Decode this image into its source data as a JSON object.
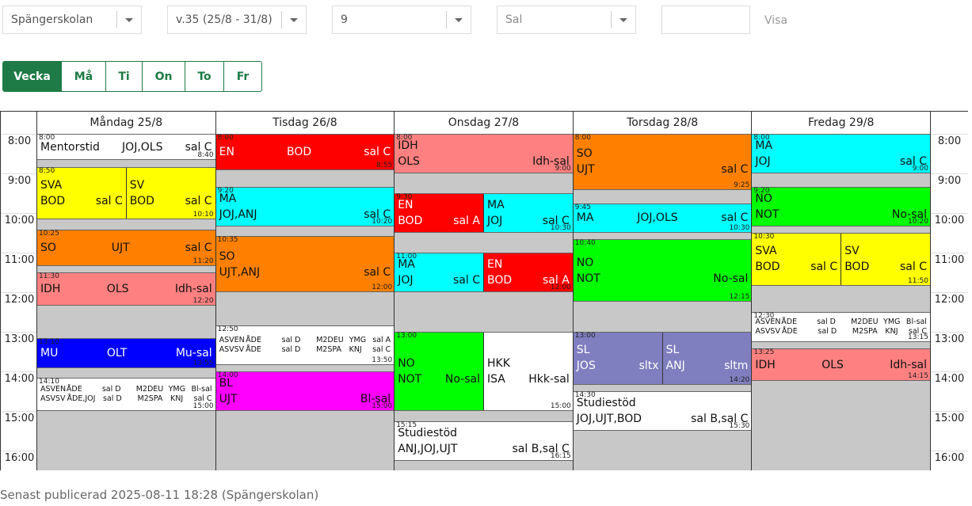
{
  "controls": {
    "school": "Spängerskolan",
    "week": "v.35 (25/8 - 31/8)",
    "class": "9",
    "room": "Sal",
    "show": "Visa"
  },
  "tabs": [
    "Vecka",
    "Må",
    "Ti",
    "On",
    "To",
    "Fr"
  ],
  "hours": [
    "8:00",
    "9:00",
    "10:00",
    "11:00",
    "12:00",
    "13:00",
    "14:00",
    "15:00",
    "16:00"
  ],
  "days": [
    {
      "name": "Måndag 25/8",
      "lessons": [
        {
          "start": "8:00",
          "end": "8:40",
          "color": "#ffffff",
          "rows": [
            [
              "Mentorstid",
              "JOJ,OLS",
              "sal C"
            ]
          ]
        },
        {
          "start": "8:50",
          "end": "10:10",
          "parts": [
            {
              "color": "#ffff00",
              "rows": [
                [
                  "SVA"
                ],
                [
                  "BOD",
                  "sal C"
                ]
              ]
            },
            {
              "color": "#ffff00",
              "rows": [
                [
                  "SV"
                ],
                [
                  "BOD",
                  "sal C"
                ]
              ]
            }
          ]
        },
        {
          "start": "10:25",
          "end": "11:20",
          "color": "#ff8000",
          "rows": [
            [
              "SO",
              "UJT",
              "sal C"
            ]
          ]
        },
        {
          "start": "11:30",
          "end": "12:20",
          "color": "#ff8080",
          "rows": [
            [
              "IDH",
              "OLS",
              "Idh-sal"
            ]
          ]
        },
        {
          "start": "13:10",
          "end": "13:55",
          "color": "#0000ff",
          "text_color": "#ffffff",
          "rows": [
            [
              "MU",
              "OLT",
              "Mu-sal"
            ]
          ]
        },
        {
          "start": "14:10",
          "end": "15:00",
          "color": "#ffffff",
          "rows": [
            [
              "ASVEN",
              "ÅDE",
              "sal D",
              "M2DEU",
              "YMG",
              "Bl-sal"
            ],
            [
              "ASVSV",
              "ÅDE,JOJ",
              "sal D",
              "M2SPA",
              "KNJ",
              "sal C"
            ]
          ]
        }
      ]
    },
    {
      "name": "Tisdag 26/8",
      "lessons": [
        {
          "start": "8:00",
          "end": "8:55",
          "color": "#ff0000",
          "text_color": "#ffffff",
          "rows": [
            [
              "EN",
              "BOD",
              "sal C"
            ]
          ]
        },
        {
          "start": "9:20",
          "end": "10:20",
          "color": "#00ffff",
          "rows": [
            [
              "MA"
            ],
            [
              "JOJ,ANJ",
              "sal C"
            ]
          ]
        },
        {
          "start": "10:35",
          "end": "12:00",
          "color": "#ff8000",
          "rows": [
            [
              "SO"
            ],
            [
              "UJT,ANJ",
              "sal C"
            ]
          ]
        },
        {
          "start": "12:50",
          "end": "13:50",
          "color": "#ffffff",
          "rows": [
            [
              "ASVEN",
              "ÅDE",
              "sal D",
              "M2DEU",
              "YMG",
              "sal A"
            ],
            [
              "ASVSV",
              "ÅDE",
              "sal D",
              "M2SPA",
              "KNJ",
              "sal C"
            ]
          ]
        },
        {
          "start": "14:00",
          "end": "15:00",
          "color": "#ff00ff",
          "rows": [
            [
              "BL"
            ],
            [
              "UJT",
              "Bl-sal"
            ]
          ]
        }
      ]
    },
    {
      "name": "Onsdag 27/8",
      "lessons": [
        {
          "start": "8:00",
          "end": "9:00",
          "color": "#ff8080",
          "rows": [
            [
              "IDH"
            ],
            [
              "OLS",
              "Idh-sal"
            ]
          ]
        },
        {
          "start": "9:30",
          "end": "10:30",
          "parts": [
            {
              "color": "#ff0000",
              "text_color": "#ffffff",
              "rows": [
                [
                  "EN"
                ],
                [
                  "BOD",
                  "sal A"
                ]
              ]
            },
            {
              "color": "#00ffff",
              "rows": [
                [
                  "MA"
                ],
                [
                  "JOJ",
                  "sal C"
                ]
              ]
            }
          ]
        },
        {
          "start": "11:00",
          "end": "12:00",
          "parts": [
            {
              "color": "#00ffff",
              "rows": [
                [
                  "MA"
                ],
                [
                  "JOJ",
                  "sal C"
                ]
              ]
            },
            {
              "color": "#ff0000",
              "text_color": "#ffffff",
              "rows": [
                [
                  "EN"
                ],
                [
                  "BOD",
                  "sal A"
                ]
              ]
            }
          ]
        },
        {
          "start": "13:00",
          "end": "15:00",
          "parts": [
            {
              "color": "#00ff00",
              "rows": [
                [
                  "NO"
                ],
                [
                  "NOT",
                  "No-sal"
                ]
              ]
            },
            {
              "color": "#ffffff",
              "rows": [
                [
                  "HKK"
                ],
                [
                  "ISA",
                  "Hkk-sal"
                ]
              ]
            }
          ]
        },
        {
          "start": "15:15",
          "end": "16:15",
          "color": "#ffffff",
          "rows": [
            [
              "Studiestöd"
            ],
            [
              "ANJ,JOJ,UJT",
              "sal B,sal C"
            ]
          ]
        }
      ]
    },
    {
      "name": "Torsdag 28/8",
      "lessons": [
        {
          "start": "8:00",
          "end": "9:25",
          "color": "#ff8000",
          "rows": [
            [
              "SO"
            ],
            [
              "UJT",
              "sal C"
            ]
          ]
        },
        {
          "start": "9:45",
          "end": "10:30",
          "color": "#00ffff",
          "rows": [
            [
              "MA",
              "JOJ,OLS",
              "sal C"
            ]
          ]
        },
        {
          "start": "10:40",
          "end": "12:15",
          "color": "#00ff00",
          "rows": [
            [
              "NO"
            ],
            [
              "NOT",
              "No-sal"
            ]
          ]
        },
        {
          "start": "13:00",
          "end": "14:20",
          "parts": [
            {
              "color": "#7f7fbf",
              "text_color": "#ffffff",
              "rows": [
                [
                  "SL"
                ],
                [
                  "JOS",
                  "sltx"
                ]
              ]
            },
            {
              "color": "#7f7fbf",
              "text_color": "#ffffff",
              "rows": [
                [
                  "SL"
                ],
                [
                  "ANJ",
                  "sltm"
                ]
              ]
            }
          ]
        },
        {
          "start": "14:30",
          "end": "15:30",
          "color": "#ffffff",
          "rows": [
            [
              "Studiestöd"
            ],
            [
              "JOJ,UJT,BOD",
              "sal B,sal C"
            ]
          ]
        }
      ]
    },
    {
      "name": "Fredag 29/8",
      "lessons": [
        {
          "start": "8:00",
          "end": "9:00",
          "color": "#00ffff",
          "rows": [
            [
              "MA"
            ],
            [
              "JOJ",
              "sal C"
            ]
          ]
        },
        {
          "start": "9:20",
          "end": "10:20",
          "color": "#00ff00",
          "rows": [
            [
              "NO"
            ],
            [
              "NOT",
              "No-sal"
            ]
          ]
        },
        {
          "start": "10:30",
          "end": "11:50",
          "parts": [
            {
              "color": "#ffff00",
              "rows": [
                [
                  "SVA"
                ],
                [
                  "BOD",
                  "sal C"
                ]
              ]
            },
            {
              "color": "#ffff00",
              "rows": [
                [
                  "SV"
                ],
                [
                  "BOD",
                  "sal C"
                ]
              ]
            }
          ]
        },
        {
          "start": "12:30",
          "end": "13:15",
          "color": "#ffffff",
          "rows": [
            [
              "ASVEN",
              "ÅDE",
              "sal D",
              "M2DEU",
              "YMG",
              "Bl-sal"
            ],
            [
              "ASVSV",
              "ÅDE",
              "sal D",
              "M2SPA",
              "KNJ",
              "sal C"
            ]
          ]
        },
        {
          "start": "13:25",
          "end": "14:15",
          "color": "#ff8080",
          "rows": [
            [
              "IDH",
              "OLS",
              "Idh-sal"
            ]
          ]
        }
      ]
    }
  ],
  "footer": "Senast publicerad 2025-08-11 18:28 (Spängerskolan)"
}
